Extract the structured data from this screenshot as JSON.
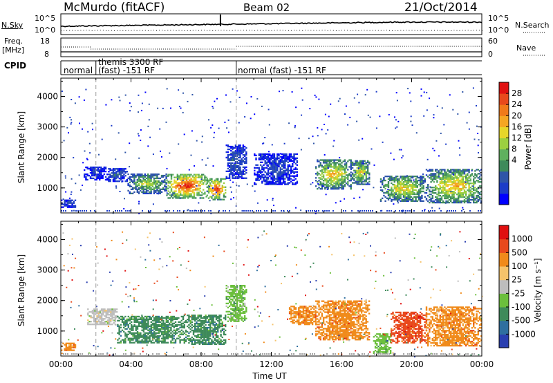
{
  "header": {
    "station": "McMurdo (fitACF)",
    "beam": "Beam 02",
    "date": "21/Oct/2014"
  },
  "noise_panel": {
    "left_label": "N.Sky",
    "right_label": "N.Search",
    "ticks_left": [
      "10^5",
      "10^0"
    ],
    "ticks_right": [
      "10^5",
      "10^0"
    ]
  },
  "freq_panel": {
    "left_label_1": "Freq.",
    "left_label_2": "[MHz]",
    "right_label": "Nave",
    "ticks_left": [
      "18",
      "8"
    ],
    "ticks_right": [
      "60",
      "0"
    ]
  },
  "cpid": {
    "label": "CPID",
    "segments": [
      {
        "start_hour": 0,
        "end_hour": 2,
        "line1": "normal",
        "line2": ""
      },
      {
        "start_hour": 2,
        "end_hour": 10,
        "line1": "themis 3300 RF",
        "line2": "(fast) -151 RF"
      },
      {
        "start_hour": 10,
        "end_hour": 24,
        "line1": "normal (fast) -151 RF",
        "line2": ""
      }
    ]
  },
  "chart_data": [
    {
      "type": "heatmap",
      "parameter": "Power",
      "ylabel": "Slant Range [km]",
      "ylim": [
        180,
        4600
      ],
      "yticks": [
        1000,
        2000,
        3000,
        4000
      ],
      "xlim_hours": [
        0,
        24
      ],
      "colorbar": {
        "label": "Power [dB]",
        "ticks": [
          "28",
          "24",
          "20",
          "16",
          "12",
          "8",
          "4"
        ],
        "colors": [
          "#0000ff",
          "#1c3cc8",
          "#2f55a8",
          "#3e8a5a",
          "#5fb05e",
          "#9ccf40",
          "#e6d62a",
          "#f5a623",
          "#f07a1a",
          "#e8491c",
          "#e01010"
        ]
      },
      "echo_regions": [
        {
          "t": [
            0.0,
            0.8
          ],
          "r": [
            350,
            600
          ],
          "level": 0.15
        },
        {
          "t": [
            1.3,
            2.6
          ],
          "r": [
            1250,
            1700
          ],
          "level": 0.12
        },
        {
          "t": [
            2.6,
            3.8
          ],
          "r": [
            1200,
            1650
          ],
          "level": 0.2
        },
        {
          "t": [
            3.8,
            6.0
          ],
          "r": [
            800,
            1450
          ],
          "level": 0.42
        },
        {
          "t": [
            6.0,
            8.3
          ],
          "r": [
            650,
            1450
          ],
          "level": 0.75
        },
        {
          "t": [
            8.3,
            9.4
          ],
          "r": [
            600,
            1300
          ],
          "level": 0.72
        },
        {
          "t": [
            9.4,
            10.6
          ],
          "r": [
            1300,
            2400
          ],
          "level": 0.2
        },
        {
          "t": [
            11.0,
            13.5
          ],
          "r": [
            1100,
            2100
          ],
          "level": 0.15
        },
        {
          "t": [
            14.5,
            16.5
          ],
          "r": [
            950,
            1900
          ],
          "level": 0.55
        },
        {
          "t": [
            16.5,
            17.6
          ],
          "r": [
            1100,
            1900
          ],
          "level": 0.48
        },
        {
          "t": [
            18.2,
            20.8
          ],
          "r": [
            550,
            1400
          ],
          "level": 0.5
        },
        {
          "t": [
            20.8,
            24.0
          ],
          "r": [
            500,
            1600
          ],
          "level": 0.55
        }
      ]
    },
    {
      "type": "heatmap",
      "parameter": "Velocity",
      "ylabel": "Slant Range [km]",
      "ylim": [
        180,
        4600
      ],
      "yticks": [
        1000,
        2000,
        3000,
        4000
      ],
      "xlim_hours": [
        0,
        24
      ],
      "xticks": [
        "00:00",
        "04:00",
        "08:00",
        "12:00",
        "16:00",
        "20:00",
        "00:00"
      ],
      "xlabel": "Time UT",
      "colorbar": {
        "label": "Velocity [m s⁻¹]",
        "ticks": [
          "1000",
          "500",
          "100",
          "25",
          "-25",
          "-100",
          "-500",
          "-1000"
        ],
        "colors": [
          "#2a3fb0",
          "#2f6f9f",
          "#3e8a5a",
          "#6bbf3c",
          "#bdbdbd",
          "#f5c36b",
          "#f08a1a",
          "#e8491c",
          "#e01010"
        ]
      },
      "echo_regions": [
        {
          "t": [
            0.0,
            0.8
          ],
          "r": [
            350,
            600
          ],
          "color_index": 6
        },
        {
          "t": [
            1.5,
            3.2
          ],
          "r": [
            1200,
            1700
          ],
          "color_index": 4
        },
        {
          "t": [
            3.2,
            7.0
          ],
          "r": [
            600,
            1500
          ],
          "color_index": 2
        },
        {
          "t": [
            7.0,
            9.4
          ],
          "r": [
            550,
            1500
          ],
          "color_index": 2
        },
        {
          "t": [
            9.4,
            10.6
          ],
          "r": [
            1300,
            2500
          ],
          "color_index": 3
        },
        {
          "t": [
            13.0,
            14.5
          ],
          "r": [
            1200,
            1800
          ],
          "color_index": 6
        },
        {
          "t": [
            14.5,
            17.6
          ],
          "r": [
            700,
            2000
          ],
          "color_index": 6
        },
        {
          "t": [
            17.8,
            18.8
          ],
          "r": [
            250,
            900
          ],
          "color_index": 3
        },
        {
          "t": [
            18.8,
            20.8
          ],
          "r": [
            600,
            1600
          ],
          "color_index": 7
        },
        {
          "t": [
            20.8,
            24.0
          ],
          "r": [
            500,
            1800
          ],
          "color_index": 6
        }
      ]
    }
  ]
}
